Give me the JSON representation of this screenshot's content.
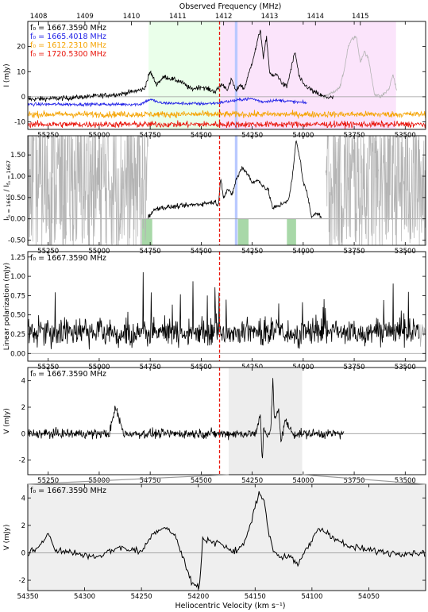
{
  "figure": {
    "top_axis_label": "Observed Frequency (MHz)",
    "bottom_axis_label": "Heliocentric Velocity (km s⁻¹)",
    "marker_velocity": 54410,
    "colors": {
      "black": "#000000",
      "blue": "#1f1fe6",
      "orange": "#f5a300",
      "red": "#e8140a",
      "grey": "#b4b4b4",
      "dashed": "#e8140a"
    }
  },
  "chart_data": [
    {
      "id": "p1",
      "type": "line",
      "ylabel": "I (mJy)",
      "xlim": [
        55350,
        53400
      ],
      "ylim": [
        -13,
        30
      ],
      "x_ticks": [
        55250,
        55000,
        54750,
        54500,
        54250,
        54000,
        53750,
        53500
      ],
      "y_ticks": [
        -10,
        0,
        10,
        20
      ],
      "top_ticks": [
        1408,
        1409,
        1410,
        1411,
        1412,
        1413,
        1414,
        1415
      ],
      "top_tick_velocity": [
        55297,
        55070,
        54842,
        54615,
        54390,
        54165,
        53940,
        53720
      ],
      "legend": [
        {
          "text": "f₀ = 1667.3590 MHz",
          "color": "#000000"
        },
        {
          "text": "f₀ = 1665.4018 MHz",
          "color": "#1f1fe6"
        },
        {
          "text": "f₀ = 1612.2310 MHz",
          "color": "#f5a300"
        },
        {
          "text": "f₀ = 1720.5300 MHz",
          "color": "#e8140a"
        }
      ],
      "shaded_regions": [
        {
          "x": [
            54758,
            54405
          ],
          "color": "#eaffea"
        },
        {
          "x": [
            54405,
            53545
          ],
          "color": "#fbe4fb"
        },
        {
          "x": [
            54335,
            54322
          ],
          "color": "#b9c9ff"
        }
      ],
      "series": [
        {
          "color": "#000000",
          "kind": "anchors",
          "baseline": 0,
          "noise": 0.7,
          "x": [
            55350,
            55150,
            54900,
            54780,
            54750,
            54720,
            54680,
            54600,
            54550,
            54500,
            54430,
            54400,
            54370,
            54350,
            54330,
            54310,
            54290,
            54260,
            54230,
            54210,
            54195,
            54180,
            54165,
            54150,
            54130,
            54100,
            54080,
            54060,
            54040,
            54020,
            54000,
            53980,
            53950,
            53900,
            53850
          ],
          "y": [
            -1,
            -0.5,
            1,
            3,
            10,
            5,
            8,
            6,
            3,
            4,
            2,
            5,
            3,
            7,
            2,
            5,
            3,
            11,
            20,
            27,
            15,
            24,
            10,
            8,
            9,
            5,
            4,
            11,
            18,
            8,
            5,
            4,
            2,
            0,
            -0.5
          ]
        },
        {
          "color": "#b4b4b4",
          "kind": "anchors",
          "baseline": 0,
          "noise": 0.5,
          "x": [
            53900,
            53850,
            53820,
            53800,
            53780,
            53760,
            53740,
            53720,
            53700,
            53680,
            53650,
            53620,
            53580,
            53560,
            53540
          ],
          "y": [
            -0.5,
            2,
            4,
            10,
            20,
            23,
            24,
            14,
            18,
            15,
            1,
            0,
            3,
            9,
            2
          ]
        },
        {
          "color": "#1f1fe6",
          "kind": "anchors",
          "baseline": -3,
          "noise": 0.45,
          "x": [
            55350,
            54800,
            54750,
            54700,
            54500,
            54420,
            54380,
            54330,
            54300,
            54250,
            54200,
            54150,
            54100,
            54050,
            53980
          ],
          "y": [
            -3,
            -3,
            -1,
            -2.5,
            -2.8,
            -2.5,
            -2,
            -1.5,
            -1,
            -0.8,
            -2,
            -1.5,
            -1.5,
            -2,
            -2.5
          ]
        },
        {
          "color": "#f5a300",
          "kind": "flat",
          "baseline": -7,
          "noise": 0.9,
          "range": [
            55350,
            53400
          ]
        },
        {
          "color": "#e8140a",
          "kind": "flat",
          "baseline": -11,
          "noise": 0.9,
          "range": [
            55350,
            53400
          ]
        }
      ],
      "ref_line": 0
    },
    {
      "id": "p2",
      "type": "line",
      "ylabel": "Iₓ / Iₓ",
      "ylabel_num": "I",
      "ylabel_sub1": "f₀ = 1665",
      "ylabel_mid": " / I",
      "ylabel_sub2": "f₀ = 1667",
      "xlim": [
        55350,
        53400
      ],
      "ylim": [
        -0.62,
        1.95
      ],
      "x_ticks": [
        55250,
        55000,
        54750,
        54500,
        54250,
        54000,
        53750,
        53500
      ],
      "y_ticks": [
        -0.5,
        0.0,
        0.5,
        1.0,
        1.5
      ],
      "shaded_regions": [
        {
          "x": [
            54335,
            54322
          ],
          "color": "#b9c9ff"
        }
      ],
      "bottom_markers": [
        {
          "x": [
            54790,
            54740
          ],
          "color": "#a8d8a8"
        },
        {
          "x": [
            54320,
            54268
          ],
          "color": "#a8d8a8"
        },
        {
          "x": [
            54080,
            54035
          ],
          "color": "#a8d8a8"
        }
      ],
      "grey_noisy_ranges": [
        [
          55350,
          54760
        ],
        [
          53890,
          53400
        ]
      ],
      "series": [
        {
          "color": "#000000",
          "kind": "anchors",
          "baseline": 0,
          "noise": 0.04,
          "x": [
            54760,
            54720,
            54600,
            54500,
            54430,
            54415,
            54405,
            54390,
            54370,
            54350,
            54330,
            54300,
            54270,
            54250,
            54220,
            54190,
            54170,
            54150,
            54120,
            54090,
            54070,
            54050,
            54035,
            54015,
            54000,
            53980,
            53960,
            53940,
            53910
          ],
          "y": [
            0.05,
            0.25,
            0.3,
            0.35,
            0.4,
            0.3,
            1.0,
            0.5,
            0.7,
            0.55,
            0.9,
            1.2,
            1.05,
            0.85,
            0.9,
            0.75,
            0.65,
            0.25,
            0.3,
            0.4,
            0.45,
            1.1,
            1.85,
            1.4,
            0.85,
            0.6,
            0.05,
            0.15,
            0.05
          ]
        }
      ],
      "ref_line": 0
    },
    {
      "id": "p3",
      "type": "line",
      "ylabel": "Linear polarization (mJy)",
      "xlim": [
        55350,
        53400
      ],
      "ylim": [
        -0.1,
        1.32
      ],
      "x_ticks": [
        55250,
        55000,
        54750,
        54500,
        54250,
        54000,
        53750,
        53500
      ],
      "y_ticks": [
        0.0,
        0.25,
        0.5,
        0.75,
        1.0,
        1.25
      ],
      "legend": [
        {
          "text": "f₀ = 1667.3590 MHz",
          "color": "#000000"
        }
      ],
      "series": [
        {
          "color": "#000000",
          "kind": "flat",
          "baseline": 0.28,
          "noise": 0.14,
          "range": [
            55350,
            53430
          ]
        },
        {
          "color": "#b4b4b4",
          "kind": "flat",
          "baseline": 0.28,
          "noise": 0.14,
          "range": [
            53430,
            53400
          ]
        }
      ],
      "ref_line": 0
    },
    {
      "id": "p4",
      "type": "line",
      "ylabel": "V (mJy)",
      "xlim": [
        55350,
        53400
      ],
      "ylim": [
        -3.1,
        5.0
      ],
      "x_ticks": [
        55250,
        55000,
        54750,
        54500,
        54250,
        54000,
        53750,
        53500
      ],
      "y_ticks": [
        -2,
        0,
        2,
        4
      ],
      "legend": [
        {
          "text": "f₀ = 1667.3590 MHz",
          "color": "#000000"
        }
      ],
      "shaded_regions": [
        {
          "x": [
            54365,
            54005
          ],
          "color": "#ededed"
        }
      ],
      "series": [
        {
          "color": "#000000",
          "kind": "anchors",
          "baseline": 0,
          "noise": 0.25,
          "x": [
            55350,
            54950,
            54920,
            54880,
            54400,
            54230,
            54210,
            54200,
            54195,
            54180,
            54160,
            54148,
            54142,
            54120,
            54108,
            54090,
            54050,
            53800
          ],
          "y": [
            0,
            0,
            2,
            0,
            0,
            0,
            1.5,
            -2.5,
            0.5,
            0,
            0,
            4.3,
            1,
            1.8,
            -0.6,
            1,
            0,
            0
          ]
        }
      ],
      "ref_line": 0
    },
    {
      "id": "p5",
      "type": "line",
      "ylabel": "V (mJy)",
      "xlabel": "Heliocentric Velocity (km s⁻¹)",
      "xlim": [
        54350,
        54000
      ],
      "ylim": [
        -2.75,
        5.0
      ],
      "x_ticks": [
        54350,
        54300,
        54250,
        54200,
        54150,
        54100,
        54050
      ],
      "y_ticks": [
        -2,
        0,
        2,
        4
      ],
      "legend": [
        {
          "text": "f₀ = 1667.3590 MHz",
          "color": "#000000"
        }
      ],
      "background": "#efefef",
      "series": [
        {
          "color": "#000000",
          "kind": "anchors",
          "baseline": 0,
          "noise": 0.18,
          "x": [
            54350,
            54340,
            54332,
            54325,
            54310,
            54290,
            54270,
            54250,
            54238,
            54228,
            54220,
            54213,
            54205,
            54199,
            54196,
            54190,
            54180,
            54170,
            54160,
            54155,
            54150,
            54146,
            54142,
            54138,
            54134,
            54128,
            54120,
            54112,
            54106,
            54100,
            54095,
            54085,
            54070,
            54050,
            54030,
            54010,
            54000
          ],
          "y": [
            0,
            0.3,
            1.5,
            0.2,
            0,
            -0.3,
            0.4,
            0.1,
            1.6,
            1.9,
            1.2,
            -0.5,
            -2.3,
            -2.5,
            1.0,
            0.9,
            0.7,
            0,
            0.6,
            1.8,
            3.5,
            4.5,
            3.6,
            1.5,
            0.2,
            -0.3,
            -0.2,
            -1.0,
            0.2,
            0.8,
            1.8,
            1.4,
            0.5,
            0.2,
            0,
            0,
            0
          ]
        }
      ],
      "ref_line": 0
    }
  ]
}
